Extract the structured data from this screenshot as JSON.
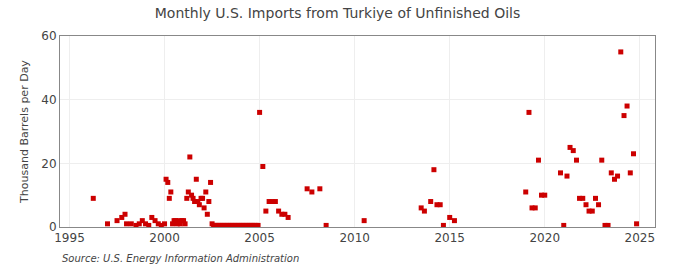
{
  "chart_data": {
    "type": "scatter",
    "title": "Monthly U.S. Imports from Turkiye of Unfinished Oils",
    "ylabel": "Thousand Barrels per Day",
    "annotations": [
      "Source: U.S. Energy Information Administration"
    ],
    "color": "#cc0000",
    "marker": "square",
    "grid": true,
    "xlim": [
      1994.5,
      2025.8
    ],
    "xticks": [
      1995,
      2000,
      2005,
      2010,
      2015,
      2020,
      2025
    ],
    "ylim": [
      0,
      60
    ],
    "yticks": [
      0,
      20,
      40,
      60
    ],
    "x": [
      1996.25,
      1997.0,
      1997.5,
      1997.75,
      1997.92,
      1998.0,
      1998.25,
      1998.5,
      1998.67,
      1998.83,
      1999.0,
      1999.17,
      1999.33,
      1999.5,
      1999.67,
      1999.83,
      2000.0,
      2000.08,
      2000.17,
      2000.25,
      2000.33,
      2000.42,
      2000.5,
      2000.58,
      2000.67,
      2000.75,
      2000.83,
      2000.92,
      2001.0,
      2001.08,
      2001.17,
      2001.25,
      2001.33,
      2001.42,
      2001.5,
      2001.58,
      2001.67,
      2001.75,
      2001.83,
      2001.92,
      2002.0,
      2002.08,
      2002.17,
      2002.25,
      2002.33,
      2002.42,
      2002.5,
      2002.58,
      2002.67,
      2002.75,
      2002.83,
      2002.92,
      2003.0,
      2003.08,
      2003.17,
      2003.25,
      2003.33,
      2003.42,
      2003.5,
      2003.58,
      2003.67,
      2003.75,
      2003.83,
      2003.92,
      2004.0,
      2004.08,
      2004.17,
      2004.25,
      2004.33,
      2004.42,
      2004.5,
      2004.58,
      2004.67,
      2004.75,
      2004.83,
      2004.92,
      2005.0,
      2005.17,
      2005.33,
      2005.5,
      2005.67,
      2005.83,
      2006.0,
      2006.17,
      2006.33,
      2006.5,
      2007.5,
      2007.75,
      2008.17,
      2008.5,
      2010.5,
      2013.5,
      2013.67,
      2014.0,
      2014.17,
      2014.33,
      2014.5,
      2014.67,
      2015.0,
      2015.25,
      2019.0,
      2019.17,
      2019.33,
      2019.5,
      2019.67,
      2019.83,
      2020.0,
      2020.83,
      2021.0,
      2021.17,
      2021.33,
      2021.5,
      2021.67,
      2021.83,
      2022.0,
      2022.17,
      2022.33,
      2022.5,
      2022.67,
      2022.83,
      2023.0,
      2023.17,
      2023.33,
      2023.5,
      2023.67,
      2023.83,
      2024.0,
      2024.17,
      2024.33,
      2024.5,
      2024.67,
      2024.83
    ],
    "values": [
      9,
      1,
      2,
      3,
      4,
      1,
      1,
      0.5,
      1,
      2,
      1,
      0.5,
      3,
      2,
      1,
      0.5,
      1,
      15,
      14,
      9,
      11,
      1,
      2,
      2,
      1,
      2,
      1,
      2,
      2,
      1,
      9,
      11,
      22,
      10,
      9,
      8,
      15,
      8,
      7,
      9,
      9,
      6,
      11,
      4,
      8,
      14,
      1,
      0.5,
      0.5,
      0.5,
      0.5,
      0.5,
      0.5,
      0.5,
      0.5,
      0.5,
      0.5,
      0.5,
      0.5,
      0.5,
      0.5,
      0.5,
      0.5,
      0.5,
      0.5,
      0.5,
      0.5,
      0.5,
      0.5,
      0.5,
      0.5,
      0.5,
      0.5,
      0.5,
      0.5,
      0.5,
      36,
      19,
      5,
      8,
      8,
      8,
      5,
      4,
      4,
      3,
      12,
      11,
      12,
      0.5,
      2,
      6,
      5,
      8,
      18,
      7,
      7,
      0.5,
      3,
      2,
      11,
      36,
      6,
      6,
      21,
      10,
      10,
      17,
      0.5,
      16,
      25,
      24,
      21,
      9,
      9,
      7,
      5,
      5,
      9,
      7,
      21,
      0.5,
      0.5,
      17,
      15,
      16,
      55,
      35,
      38,
      17,
      23,
      1
    ]
  }
}
